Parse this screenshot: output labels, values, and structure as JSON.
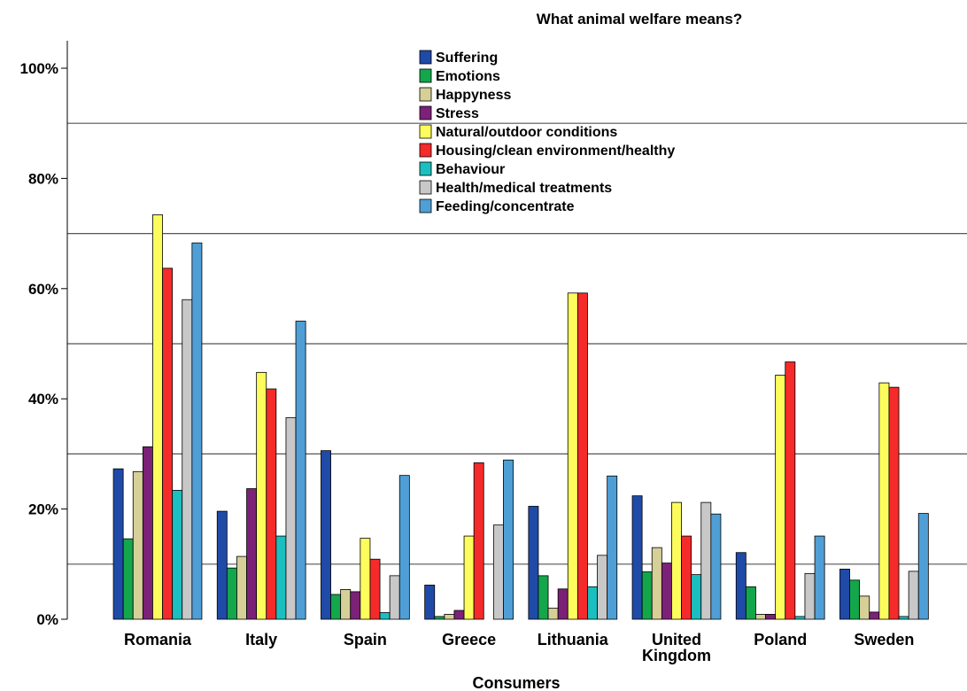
{
  "chart_data": {
    "type": "bar",
    "title": "What animal welfare means?",
    "xlabel": "Consumers",
    "ylabel": "",
    "ylim": [
      0,
      100
    ],
    "yticks": [
      "0%",
      "20%",
      "40%",
      "60%",
      "80%",
      "100%"
    ],
    "ytick_values": [
      0,
      20,
      40,
      60,
      80,
      100
    ],
    "gridlines": [
      10,
      30,
      50,
      70,
      90
    ],
    "legend_position": "top-center",
    "categories": [
      "Romania",
      "Italy",
      "Spain",
      "Greece",
      "Lithuania",
      "United Kingdom",
      "Poland",
      "Sweden"
    ],
    "category_lines": [
      [
        "Romania"
      ],
      [
        "Italy"
      ],
      [
        "Spain"
      ],
      [
        "Greece"
      ],
      [
        "Lithuania"
      ],
      [
        "United",
        "Kingdom"
      ],
      [
        "Poland"
      ],
      [
        "Sweden"
      ]
    ],
    "series": [
      {
        "name": "Suffering",
        "color": "#1f4aa8",
        "values": [
          27.3,
          19.6,
          30.6,
          6.2,
          20.5,
          22.4,
          12.1,
          9.1
        ]
      },
      {
        "name": "Emotions",
        "color": "#13a64b",
        "values": [
          14.6,
          9.3,
          4.5,
          0.5,
          7.9,
          8.6,
          5.9,
          7.1
        ]
      },
      {
        "name": "Happyness",
        "color": "#d6cf98",
        "values": [
          26.8,
          11.4,
          5.4,
          0.9,
          2.0,
          13.0,
          0.9,
          4.2
        ]
      },
      {
        "name": "Stress",
        "color": "#7b2178",
        "values": [
          31.3,
          23.7,
          5.0,
          1.6,
          5.5,
          10.2,
          0.9,
          1.3
        ]
      },
      {
        "name": "Natural/outdoor conditions",
        "color": "#fcfc5c",
        "values": [
          73.4,
          44.8,
          14.7,
          15.1,
          59.2,
          21.2,
          44.3,
          42.9
        ]
      },
      {
        "name": "Housing/clean environment/healthy",
        "color": "#f52a2a",
        "values": [
          63.7,
          41.8,
          10.9,
          28.4,
          59.2,
          15.1,
          46.7,
          42.1
        ]
      },
      {
        "name": "Behaviour",
        "color": "#1cbfbf",
        "values": [
          23.4,
          15.1,
          1.2,
          0.0,
          5.9,
          8.1,
          0.5,
          0.5
        ]
      },
      {
        "name": "Health/medical treatments",
        "color": "#c8c8c8",
        "values": [
          58.0,
          36.6,
          7.9,
          17.1,
          11.6,
          21.2,
          8.3,
          8.7
        ]
      },
      {
        "name": "Feeding/concentrate",
        "color": "#4f9fd6",
        "values": [
          68.3,
          54.1,
          26.1,
          28.9,
          26.0,
          19.1,
          15.1,
          19.2
        ]
      }
    ]
  }
}
